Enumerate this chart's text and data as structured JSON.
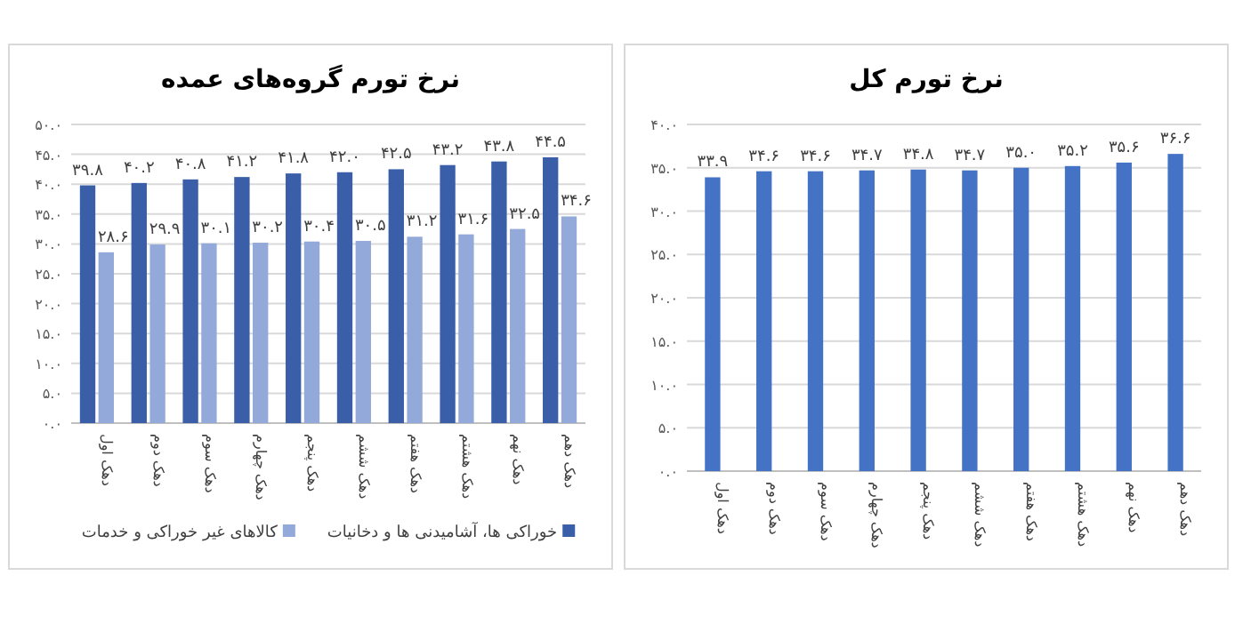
{
  "chart_data": [
    {
      "type": "bar",
      "title": "نرخ تورم گروه‌های عمده",
      "categories": [
        "دهک اول",
        "دهک دوم",
        "دهک سوم",
        "دهک چهارم",
        "دهک پنجم",
        "دهک ششم",
        "دهک هفتم",
        "دهک هشتم",
        "دهک نهم",
        "دهک دهم"
      ],
      "series": [
        {
          "name": "خوراکی ها، آشامیدنی ها و دخانیات",
          "color": "#3a5fa8",
          "values": [
            39.8,
            40.2,
            40.8,
            41.2,
            41.8,
            42.0,
            42.5,
            43.2,
            43.8,
            44.5
          ],
          "value_labels": [
            "۳۹.۸",
            "۴۰.۲",
            "۴۰.۸",
            "۴۱.۲",
            "۴۱.۸",
            "۴۲.۰",
            "۴۲.۵",
            "۴۳.۲",
            "۴۳.۸",
            "۴۴.۵"
          ]
        },
        {
          "name": "کالاهای غیر خوراکی و خدمات",
          "color": "#92a9d9",
          "values": [
            28.6,
            29.9,
            30.1,
            30.2,
            30.4,
            30.5,
            31.2,
            31.6,
            32.5,
            34.6
          ],
          "value_labels": [
            "۲۸.۶",
            "۲۹.۹",
            "۳۰.۱",
            "۳۰.۲",
            "۳۰.۴",
            "۳۰.۵",
            "۳۱.۲",
            "۳۱.۶",
            "۳۲.۵",
            "۳۴.۶"
          ]
        }
      ],
      "ylim": [
        0,
        50
      ],
      "yticks": [
        {
          "value": 0,
          "label": "۰.۰"
        },
        {
          "value": 5,
          "label": "۵.۰"
        },
        {
          "value": 10,
          "label": "۱۰.۰"
        },
        {
          "value": 15,
          "label": "۱۵.۰"
        },
        {
          "value": 20,
          "label": "۲۰.۰"
        },
        {
          "value": 25,
          "label": "۲۵.۰"
        },
        {
          "value": 30,
          "label": "۳۰.۰"
        },
        {
          "value": 35,
          "label": "۳۵.۰"
        },
        {
          "value": 40,
          "label": "۴۰.۰"
        },
        {
          "value": 45,
          "label": "۴۵.۰"
        },
        {
          "value": 50,
          "label": "۵۰.۰"
        }
      ],
      "grid": "y",
      "legend": "bottom"
    },
    {
      "type": "bar",
      "title": "نرخ تورم کل",
      "categories": [
        "دهک اول",
        "دهک دوم",
        "دهک سوم",
        "دهک چهارم",
        "دهک پنجم",
        "دهک ششم",
        "دهک هفتم",
        "دهک هشتم",
        "دهک نهم",
        "دهک دهم"
      ],
      "series": [
        {
          "color": "#4472c4",
          "values": [
            33.9,
            34.6,
            34.6,
            34.7,
            34.8,
            34.7,
            35.0,
            35.2,
            35.6,
            36.6
          ],
          "value_labels": [
            "۳۳.۹",
            "۳۴.۶",
            "۳۴.۶",
            "۳۴.۷",
            "۳۴.۸",
            "۳۴.۷",
            "۳۵.۰",
            "۳۵.۲",
            "۳۵.۶",
            "۳۶.۶"
          ]
        }
      ],
      "ylim": [
        0,
        40
      ],
      "yticks": [
        {
          "value": 0,
          "label": "۰.۰"
        },
        {
          "value": 5,
          "label": "۵.۰"
        },
        {
          "value": 10,
          "label": "۱۰.۰"
        },
        {
          "value": 15,
          "label": "۱۵.۰"
        },
        {
          "value": 20,
          "label": "۲۰.۰"
        },
        {
          "value": 25,
          "label": "۲۵.۰"
        },
        {
          "value": 30,
          "label": "۳۰.۰"
        },
        {
          "value": 35,
          "label": "۳۵.۰"
        },
        {
          "value": 40,
          "label": "۴۰.۰"
        }
      ],
      "grid": "y"
    }
  ]
}
